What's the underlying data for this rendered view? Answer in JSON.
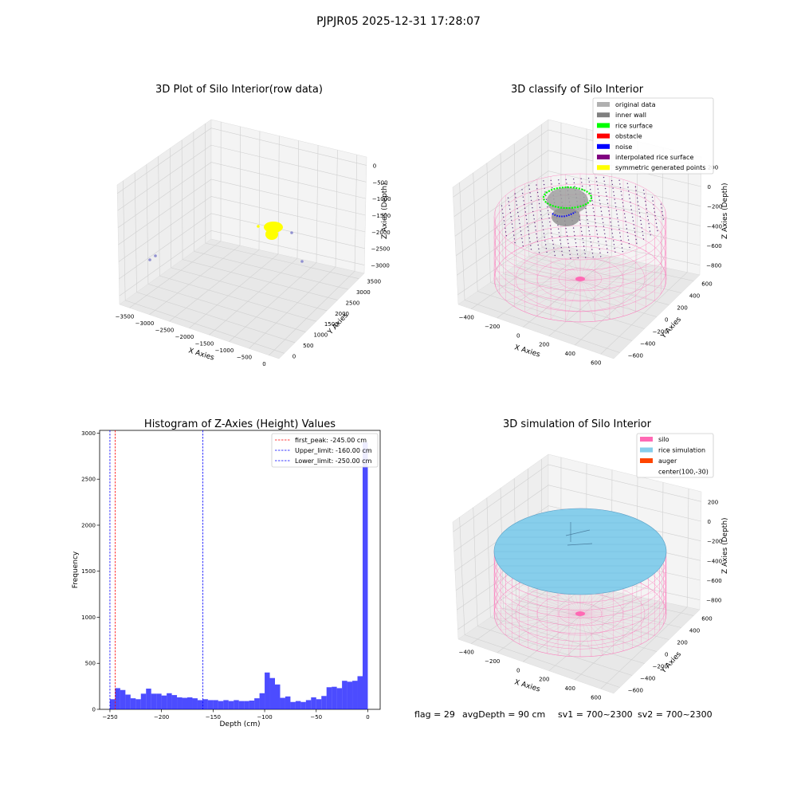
{
  "suptitle": "PJPJR05 2025-12-31 17:28:07",
  "status_line": {
    "flag": "flag = 29",
    "avg_depth": "avgDepth = 90 cm",
    "sv1": "sv1 = 700~2300",
    "sv2": "sv2 = 700~2300"
  },
  "colors": {
    "pane": "#f2f2f2",
    "pane_dark": "#e6e6e6",
    "grid": "#d0d0d0",
    "silo": "#ff69b4",
    "rice_surface": "#00ff00",
    "noise": "#0000ff",
    "raw_points": "#ffff00",
    "histogram": "#0000ff",
    "rice_simulation": "#87ceeb"
  },
  "chart_data": [
    {
      "type": "scatter3d",
      "title": "3D Plot of Silo Interior(row data)",
      "xlabel": "X Axies",
      "ylabel": "Y Axies",
      "zlabel": "Z Axies (Depth)",
      "x_ticks": [
        "−3500",
        "−3000",
        "−2500",
        "−2000",
        "−1500",
        "−1000",
        "−500",
        "0"
      ],
      "y_ticks": [
        "0",
        "500",
        "1000",
        "1500",
        "2000",
        "2500",
        "3000",
        "3500"
      ],
      "z_ticks": [
        "0",
        "−500",
        "−1000",
        "−1500",
        "−2000",
        "−2500",
        "−3000"
      ]
    },
    {
      "type": "scatter3d",
      "title": "3D classify of Silo Interior",
      "xlabel": "X Axies",
      "ylabel": "Y Axies",
      "zlabel": "Z Axies (Depth)",
      "x_ticks": [
        "−400",
        "−200",
        "0",
        "200",
        "400",
        "600"
      ],
      "y_ticks": [
        "−600",
        "−400",
        "−200",
        "0",
        "200",
        "400",
        "600"
      ],
      "z_ticks": [
        "200",
        "0",
        "−200",
        "−400",
        "−600",
        "−800"
      ],
      "legend_position": "top-right",
      "legend": [
        {
          "label": "original data",
          "color": "#b0b0b0"
        },
        {
          "label": "inner wall",
          "color": "#808080"
        },
        {
          "label": "rice surface",
          "color": "#00ff00"
        },
        {
          "label": "obstacle",
          "color": "#ff0000"
        },
        {
          "label": "noise",
          "color": "#0000ff"
        },
        {
          "label": "interpolated rice surface",
          "color": "#800080"
        },
        {
          "label": "symmetric generated points",
          "color": "#ffff00"
        }
      ]
    },
    {
      "type": "bar",
      "title": "Histogram of Z-Axies (Height) Values",
      "xlabel": "Depth (cm)",
      "ylabel": "Frequency",
      "xlim": [
        -260,
        12
      ],
      "ylim": [
        0,
        3030
      ],
      "x_ticks": [
        -250,
        -200,
        -150,
        -100,
        -50,
        0
      ],
      "y_ticks": [
        0,
        500,
        1000,
        1500,
        2000,
        2500,
        3000
      ],
      "bin_start": -250,
      "bin_width": 5,
      "values": [
        110,
        230,
        210,
        160,
        120,
        110,
        170,
        225,
        170,
        170,
        150,
        175,
        155,
        130,
        125,
        130,
        120,
        100,
        110,
        100,
        100,
        90,
        100,
        90,
        100,
        90,
        90,
        95,
        120,
        175,
        400,
        340,
        270,
        125,
        140,
        80,
        90,
        80,
        100,
        130,
        110,
        145,
        240,
        245,
        230,
        310,
        300,
        310,
        360,
        2900
      ],
      "lines": [
        {
          "value": -245,
          "color": "#ff0000",
          "label": "first_peak: -245.00 cm"
        },
        {
          "value": -160,
          "color": "#0000ff",
          "label": "Upper_limit: -160.00 cm"
        },
        {
          "value": -250,
          "color": "#0000ff",
          "label": "Lower_limit: -250.00 cm"
        }
      ],
      "legend_position": "top-right"
    },
    {
      "type": "surface3d",
      "title": "3D simulation of Silo Interior",
      "xlabel": "X Axies",
      "ylabel": "Y Axies",
      "zlabel": "Z Axies (Depth)",
      "x_ticks": [
        "−400",
        "−200",
        "0",
        "200",
        "400",
        "600"
      ],
      "y_ticks": [
        "−600",
        "−400",
        "−200",
        "0",
        "200",
        "400",
        "600"
      ],
      "z_ticks": [
        "200",
        "0",
        "−200",
        "−400",
        "−600",
        "−800"
      ],
      "legend_position": "top-right",
      "legend": [
        {
          "label": "silo",
          "color": "#ff69b4"
        },
        {
          "label": "rice simulation",
          "color": "#87ceeb"
        },
        {
          "label": "auger",
          "color": "#ff4500"
        },
        {
          "label": "center(100,-30)",
          "color": "#ffffff"
        }
      ]
    }
  ]
}
